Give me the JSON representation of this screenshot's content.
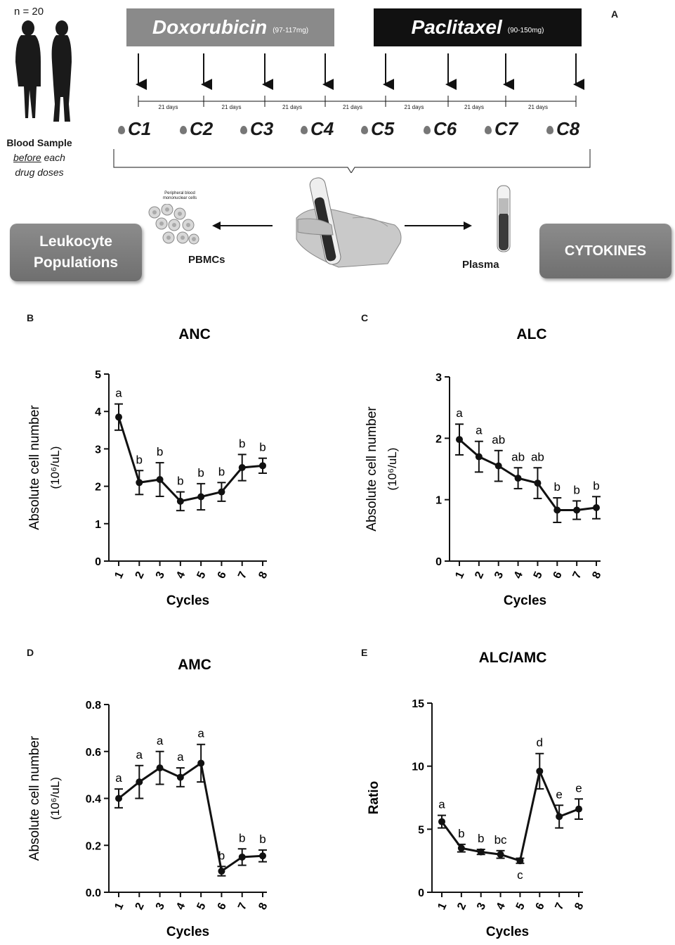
{
  "panel_a": {
    "letter": "A",
    "n_label": "n = 20",
    "blood_sample_line1": "Blood Sample",
    "blood_sample_before": "before",
    "blood_sample_rest1": " each",
    "blood_sample_line3": "drug doses",
    "drug1": {
      "name": "Doxorubicin",
      "dose": "(97-117mg)",
      "color": "#8a8a8a"
    },
    "drug2": {
      "name": "Paclitaxel",
      "dose": "(90-150mg)",
      "color": "#111111"
    },
    "interval_label": "21 days",
    "cycles": [
      "C1",
      "C2",
      "C3",
      "C4",
      "C5",
      "C6",
      "C7",
      "C8"
    ],
    "pbmc_caption": "Peripheral blood mononuclear cells",
    "pbmc_label": "PBMCs",
    "plasma_label": "Plasma",
    "leukocyte_line1": "Leukocyte",
    "leukocyte_line2": "Populations",
    "cytokines_label": "CYTOKINES"
  },
  "chart_data": [
    {
      "id": "B",
      "type": "line",
      "title": "ANC",
      "xlabel": "Cycles",
      "ylabel": "Absolute  cell number",
      "yunit": "(10⁶/uL)",
      "categories": [
        "1",
        "2",
        "3",
        "4",
        "5",
        "6",
        "7",
        "8"
      ],
      "values": [
        3.85,
        2.1,
        2.18,
        1.6,
        1.72,
        1.85,
        2.5,
        2.55
      ],
      "errors": [
        0.35,
        0.32,
        0.45,
        0.25,
        0.35,
        0.25,
        0.35,
        0.2
      ],
      "letters": [
        "a",
        "b",
        "b",
        "b",
        "b",
        "b",
        "b",
        "b"
      ],
      "ylim": [
        0,
        5
      ],
      "yticks": [
        "0",
        "1",
        "2",
        "3",
        "4",
        "5"
      ]
    },
    {
      "id": "C",
      "type": "line",
      "title": "ALC",
      "xlabel": "Cycles",
      "ylabel": "Absolute  cell number",
      "yunit": "(10⁶/uL)",
      "categories": [
        "1",
        "2",
        "3",
        "4",
        "5",
        "6",
        "7",
        "8"
      ],
      "values": [
        1.98,
        1.7,
        1.55,
        1.35,
        1.27,
        0.83,
        0.83,
        0.87
      ],
      "errors": [
        0.25,
        0.25,
        0.25,
        0.17,
        0.25,
        0.2,
        0.15,
        0.18
      ],
      "letters": [
        "a",
        "a",
        "ab",
        "ab",
        "ab",
        "b",
        "b",
        "b"
      ],
      "ylim": [
        0,
        3
      ],
      "yticks": [
        "0",
        "1",
        "2",
        "3"
      ]
    },
    {
      "id": "D",
      "type": "line",
      "title": "AMC",
      "xlabel": "Cycles",
      "ylabel": "Absolute  cell number",
      "yunit": "(10⁶/uL)",
      "categories": [
        "1",
        "2",
        "3",
        "4",
        "5",
        "6",
        "7",
        "8"
      ],
      "values": [
        0.4,
        0.47,
        0.53,
        0.49,
        0.55,
        0.09,
        0.15,
        0.155
      ],
      "errors": [
        0.04,
        0.07,
        0.07,
        0.04,
        0.08,
        0.02,
        0.035,
        0.025
      ],
      "letters": [
        "a",
        "a",
        "a",
        "a",
        "a",
        "b",
        "b",
        "b"
      ],
      "ylim": [
        0,
        0.8
      ],
      "yticks": [
        "0.0",
        "0.2",
        "0.4",
        "0.6",
        "0.8"
      ]
    },
    {
      "id": "E",
      "type": "line",
      "title": "ALC/AMC",
      "xlabel": "Cycles",
      "ylabel": "Ratio",
      "yunit": "",
      "categories": [
        "1",
        "2",
        "3",
        "4",
        "5",
        "6",
        "7",
        "8"
      ],
      "values": [
        5.6,
        3.5,
        3.2,
        3.0,
        2.5,
        9.6,
        6.0,
        6.6
      ],
      "errors": [
        0.5,
        0.3,
        0.2,
        0.3,
        0.2,
        1.4,
        0.9,
        0.8
      ],
      "letters": [
        "a",
        "b",
        "b",
        "bc",
        "c",
        "d",
        "e",
        "e"
      ],
      "ylim": [
        0,
        15
      ],
      "yticks": [
        "0",
        "5",
        "10",
        "15"
      ]
    }
  ]
}
